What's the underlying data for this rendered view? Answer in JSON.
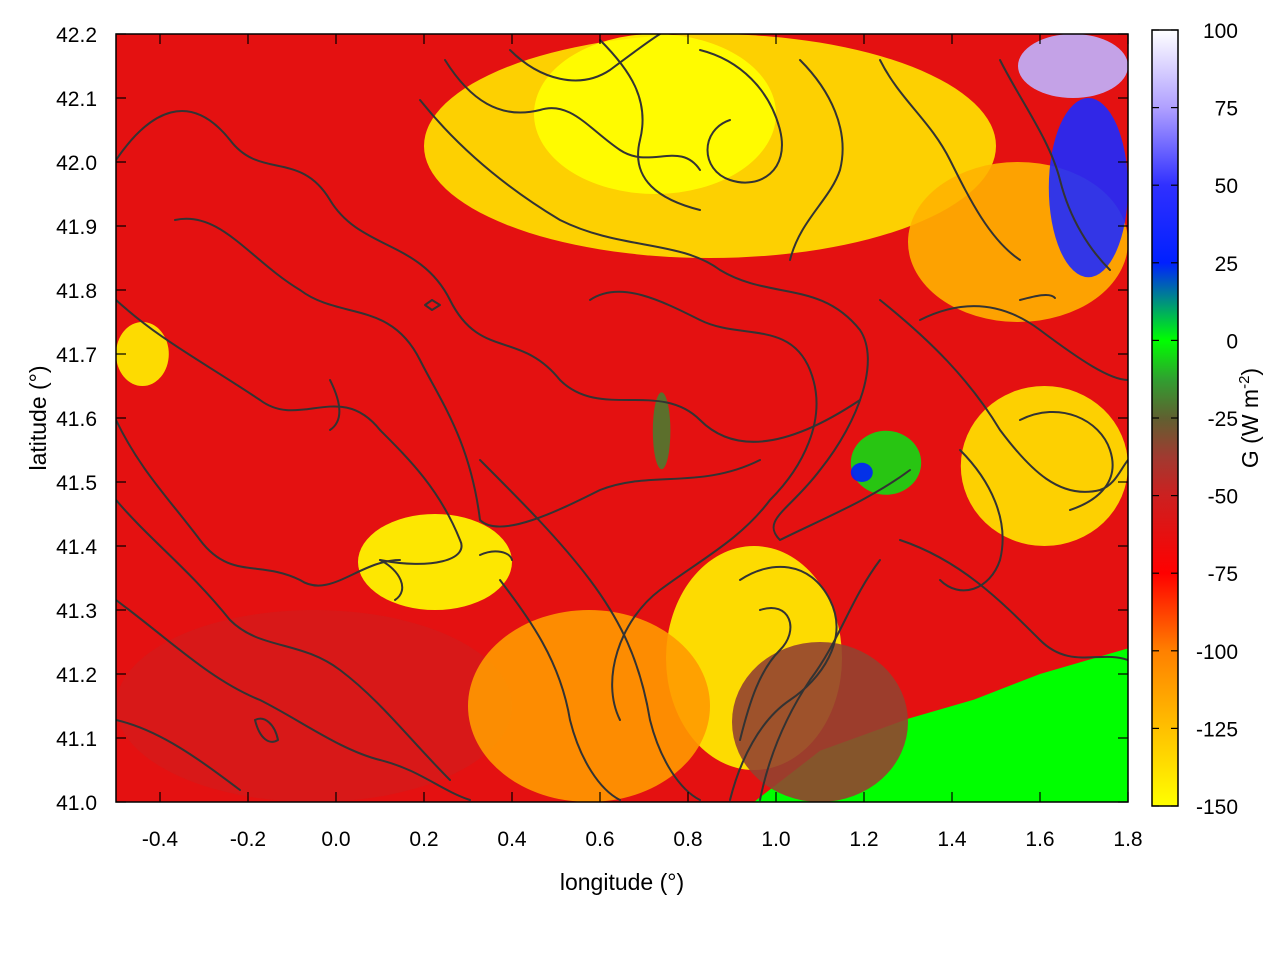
{
  "chart_data": {
    "type": "heatmap",
    "title": "",
    "xlabel": "longitude (°)",
    "ylabel": "latitude (°)",
    "colorbar_label": "G (W m⁻²)",
    "colorbar_label_main": "G (W m",
    "colorbar_label_sup": "-2",
    "colorbar_label_close": ")",
    "xlim": [
      -0.5,
      1.8
    ],
    "ylim": [
      41.0,
      42.2
    ],
    "x_ticks": [
      -0.4,
      -0.2,
      0.0,
      0.2,
      0.4,
      0.6,
      0.8,
      1.0,
      1.2,
      1.4,
      1.6,
      1.8
    ],
    "x_tick_labels": [
      "-0.4",
      "-0.2",
      "0.0",
      "0.2",
      "0.4",
      "0.6",
      "0.8",
      "1.0",
      "1.2",
      "1.4",
      "1.6",
      "1.8"
    ],
    "y_ticks": [
      41.0,
      41.1,
      41.2,
      41.3,
      41.4,
      41.5,
      41.6,
      41.7,
      41.8,
      41.9,
      42.0,
      42.1,
      42.2
    ],
    "y_tick_labels": [
      "41.0",
      "41.1",
      "41.2",
      "41.3",
      "41.4",
      "41.5",
      "41.6",
      "41.7",
      "41.8",
      "41.9",
      "42.0",
      "42.1",
      "42.2"
    ],
    "colorbar_range": [
      -150,
      100
    ],
    "colorbar_ticks": [
      100,
      75,
      50,
      25,
      0,
      -25,
      -50,
      -75,
      -100,
      -125,
      -150
    ],
    "colorbar_tick_labels": [
      "100",
      "75",
      "50",
      "25",
      "0",
      "-25",
      "-50",
      "-75",
      "-100",
      "-125",
      "-150"
    ],
    "colormap": [
      {
        "value": -150,
        "color": "#ffff00"
      },
      {
        "value": -125,
        "color": "#ffc000"
      },
      {
        "value": -100,
        "color": "#ff8000"
      },
      {
        "value": -75,
        "color": "#ff0000"
      },
      {
        "value": -50,
        "color": "#cc2020"
      },
      {
        "value": -37.5,
        "color": "#a03a30"
      },
      {
        "value": -25,
        "color": "#606030"
      },
      {
        "value": -12.5,
        "color": "#30a030"
      },
      {
        "value": 0,
        "color": "#00ff00"
      },
      {
        "value": 12.5,
        "color": "#009080"
      },
      {
        "value": 25,
        "color": "#0020ff"
      },
      {
        "value": 50,
        "color": "#3030ff"
      },
      {
        "value": 75,
        "color": "#b0a0ff"
      },
      {
        "value": 100,
        "color": "#ffffff"
      }
    ],
    "field_regions": [
      {
        "name": "background",
        "value": -62
      },
      {
        "name": "west-dark-band",
        "value": -55,
        "lon": [
          -0.5,
          0.4
        ],
        "lat": [
          41.0,
          41.3
        ]
      },
      {
        "name": "northeast-warm",
        "value": -140,
        "lon": [
          0.2,
          1.5
        ],
        "lat": [
          41.85,
          42.2
        ]
      },
      {
        "name": "northeast-bright",
        "value": -150,
        "lon": [
          0.45,
          1.0
        ],
        "lat": [
          41.95,
          42.2
        ]
      },
      {
        "name": "east-mixed",
        "value": -120,
        "lon": [
          1.3,
          1.8
        ],
        "lat": [
          41.75,
          42.0
        ]
      },
      {
        "name": "far-northeast-positive",
        "value": 40,
        "lon": [
          1.62,
          1.8
        ],
        "lat": [
          41.82,
          42.1
        ]
      },
      {
        "name": "top-right-corner",
        "value": 80,
        "lon": [
          1.55,
          1.8
        ],
        "lat": [
          42.1,
          42.2
        ]
      },
      {
        "name": "coastal-warm",
        "value": -145,
        "lon": [
          0.75,
          1.15
        ],
        "lat": [
          41.05,
          41.4
        ]
      },
      {
        "name": "central-south-warm",
        "value": -110,
        "lon": [
          0.3,
          0.85
        ],
        "lat": [
          41.0,
          41.3
        ]
      },
      {
        "name": "mid-west-yellow",
        "value": -150,
        "lon": [
          0.05,
          0.4
        ],
        "lat": [
          41.3,
          41.45
        ]
      },
      {
        "name": "west-yellow-spot",
        "value": -145,
        "lon": [
          -0.5,
          -0.38
        ],
        "lat": [
          41.65,
          41.75
        ]
      },
      {
        "name": "east-yellow-patches",
        "value": -140,
        "lon": [
          1.42,
          1.8
        ],
        "lat": [
          41.4,
          41.65
        ]
      },
      {
        "name": "sea-pure",
        "value": 0,
        "polygon": [
          [
            0.95,
            41.0
          ],
          [
            1.1,
            41.08
          ],
          [
            1.3,
            41.13
          ],
          [
            1.45,
            41.16
          ],
          [
            1.6,
            41.2
          ],
          [
            1.8,
            41.24
          ],
          [
            1.8,
            41.0
          ]
        ]
      },
      {
        "name": "coastal-transition",
        "value": -35,
        "lon": [
          0.9,
          1.3
        ],
        "lat": [
          41.0,
          41.25
        ]
      },
      {
        "name": "mid-east-green",
        "value": -5,
        "lon": [
          1.17,
          1.33
        ],
        "lat": [
          41.48,
          41.58
        ]
      },
      {
        "name": "mid-east-blue",
        "value": 25,
        "lon": [
          1.17,
          1.22
        ],
        "lat": [
          41.5,
          41.53
        ]
      },
      {
        "name": "green-streak",
        "value": -20,
        "lon": [
          0.72,
          0.76
        ],
        "lat": [
          41.52,
          41.64
        ]
      }
    ]
  }
}
